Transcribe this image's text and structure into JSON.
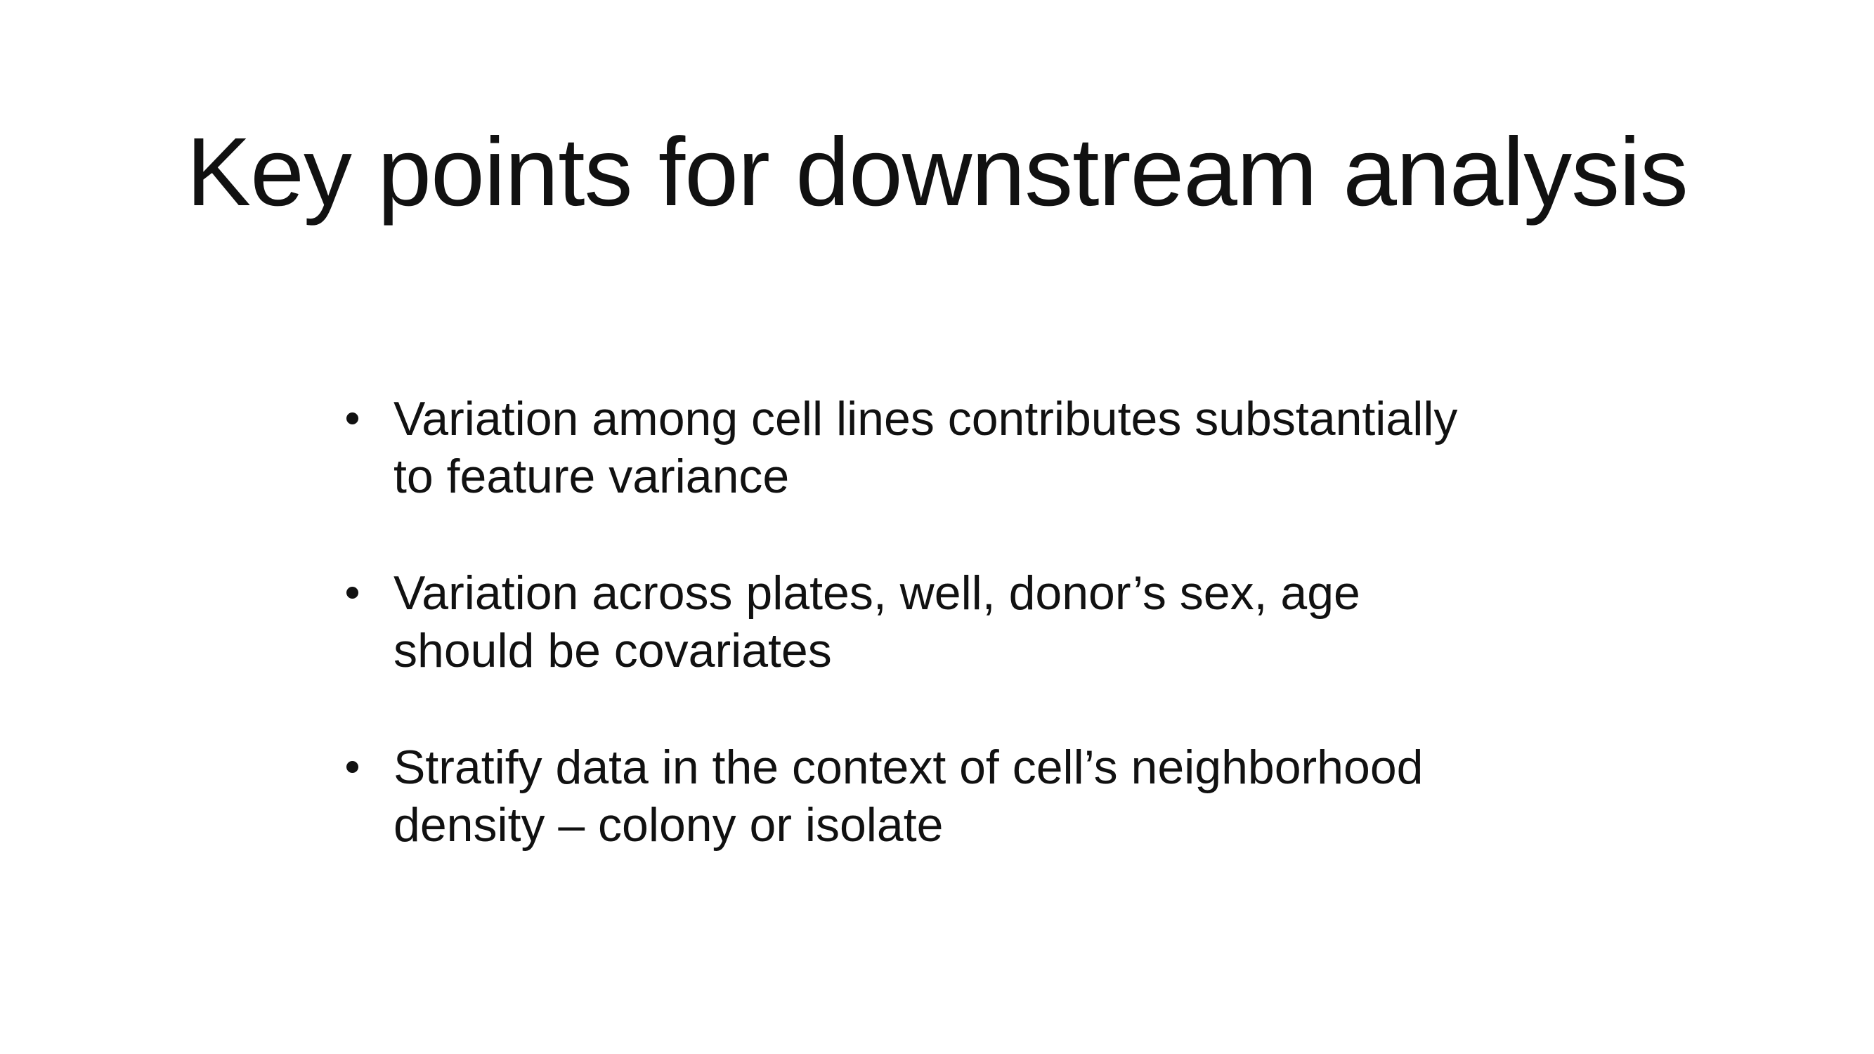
{
  "slide": {
    "title": "Key points for downstream analysis",
    "bullets": [
      {
        "line1": "Variation among cell lines contributes substantially",
        "line2": "to feature variance"
      },
      {
        "line1": "Variation across plates, well, donor’s sex, age",
        "line2": "should be covariates"
      },
      {
        "line1": "Stratify data in the context of cell’s neighborhood",
        "line2": "density – colony or isolate"
      }
    ]
  },
  "colors": {
    "background": "#ffffff",
    "text": "#111111"
  }
}
